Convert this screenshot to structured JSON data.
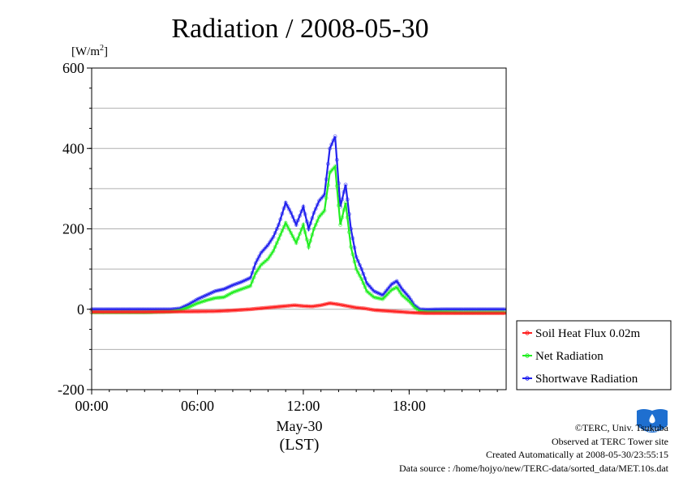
{
  "chart_data": {
    "type": "line",
    "title": "Radiation / 2008-05-30",
    "ylabel": "[W/m2]",
    "xlabel_date": "May-30",
    "xlabel_tz": "(LST)",
    "x_ticks": [
      "00:00",
      "06:00",
      "12:00",
      "18:00"
    ],
    "y_ticks": [
      600,
      400,
      200,
      0,
      -200
    ],
    "ylim": [
      -200,
      600
    ],
    "xlim_hours": [
      0,
      23.5
    ],
    "grid": true,
    "legend_position": "right-bottom",
    "series": [
      {
        "name": "Soil Heat Flux 0.02m",
        "color": "#ff2020",
        "x": [
          0,
          3,
          5,
          7,
          8,
          9,
          10,
          11,
          11.5,
          12,
          12.5,
          13,
          13.5,
          14,
          14.5,
          15,
          15.5,
          16,
          17,
          18,
          19,
          21,
          23.5
        ],
        "y": [
          -7,
          -7,
          -6,
          -5,
          -3,
          0,
          4,
          8,
          10,
          8,
          7,
          10,
          15,
          12,
          8,
          4,
          2,
          -2,
          -5,
          -8,
          -10,
          -10,
          -10
        ]
      },
      {
        "name": "Net Radiation",
        "color": "#22ee22",
        "x": [
          0,
          3,
          4.5,
          5,
          5.5,
          6,
          6.5,
          7,
          7.5,
          8,
          8.5,
          9,
          9.3,
          9.6,
          10,
          10.3,
          10.6,
          11,
          11.3,
          11.6,
          12,
          12.3,
          12.6,
          12.9,
          13.2,
          13.5,
          13.8,
          14.1,
          14.4,
          14.7,
          15,
          15.3,
          15.6,
          16,
          16.5,
          17,
          17.3,
          17.6,
          18,
          18.3,
          18.6,
          19,
          20,
          21,
          23.5
        ],
        "y": [
          -8,
          -8,
          -6,
          -3,
          5,
          15,
          22,
          28,
          30,
          42,
          50,
          58,
          90,
          110,
          125,
          145,
          175,
          215,
          190,
          165,
          210,
          155,
          200,
          230,
          245,
          340,
          355,
          210,
          265,
          155,
          100,
          75,
          45,
          30,
          25,
          48,
          55,
          35,
          20,
          5,
          -5,
          -7,
          -7,
          -8,
          -8
        ]
      },
      {
        "name": "Shortwave Radiation",
        "color": "#2222ee",
        "x": [
          0,
          3,
          4.5,
          5,
          5.5,
          6,
          6.5,
          7,
          7.5,
          8,
          8.5,
          9,
          9.3,
          9.6,
          10,
          10.3,
          10.6,
          11,
          11.3,
          11.6,
          12,
          12.3,
          12.6,
          12.9,
          13.2,
          13.5,
          13.8,
          14.1,
          14.4,
          14.7,
          15,
          15.3,
          15.6,
          16,
          16.5,
          17,
          17.3,
          17.6,
          18,
          18.3,
          18.6,
          19,
          20,
          21,
          23.5
        ],
        "y": [
          0,
          0,
          0,
          2,
          12,
          25,
          35,
          45,
          50,
          60,
          68,
          78,
          115,
          140,
          160,
          180,
          210,
          265,
          240,
          210,
          255,
          200,
          240,
          270,
          285,
          400,
          430,
          255,
          310,
          200,
          130,
          100,
          65,
          45,
          35,
          62,
          70,
          50,
          30,
          10,
          0,
          -1,
          0,
          0,
          0
        ]
      }
    ]
  },
  "footer": {
    "copyright": "©TERC, Univ. Tsukuba",
    "observed": "Observed at TERC Tower site",
    "created": "Created Automatically at 2008-05-30/23:55:15",
    "source": "Data source : /home/hojyo/new/TERC-data/sorted_data/MET.10s.dat",
    "logo_text": "TERC"
  },
  "colors": {
    "grid": "#b0b0b0",
    "logo": "#1e6fd0"
  }
}
